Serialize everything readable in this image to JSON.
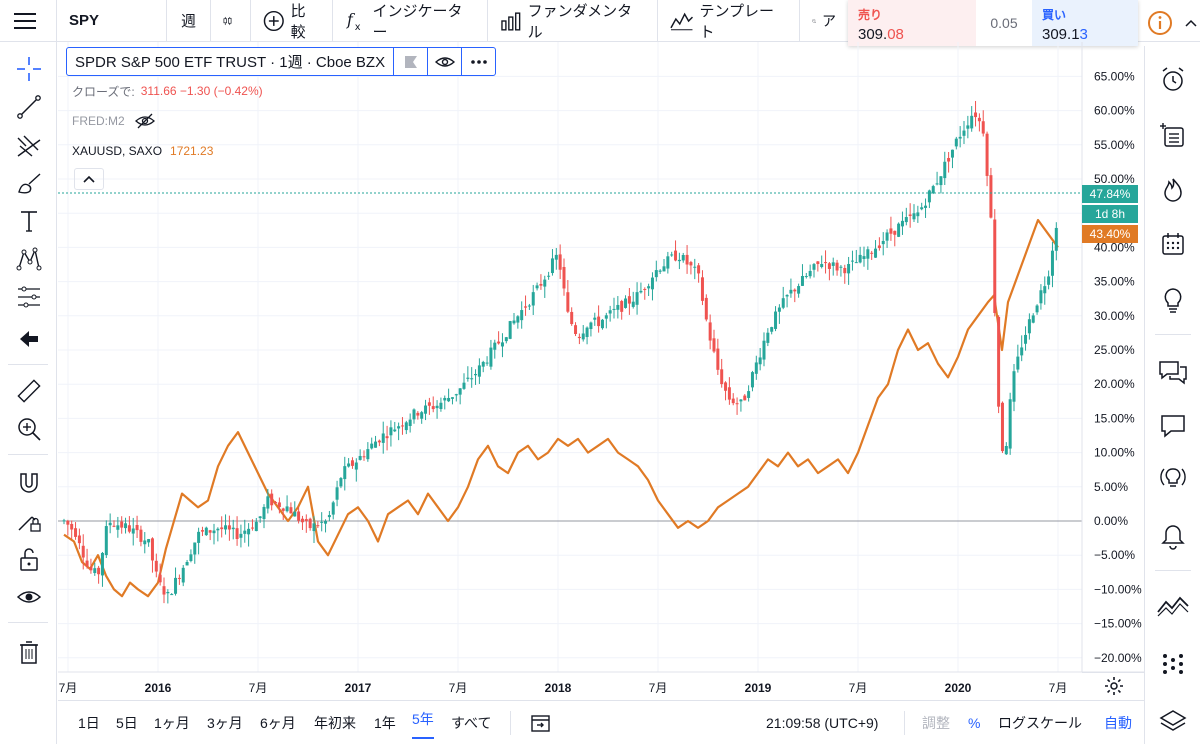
{
  "toolbar": {
    "symbol": "SPY",
    "interval": "週",
    "compare_label": "比較",
    "indicators_label": "インジケーター",
    "fundamentals_label": "ファンダメンタル",
    "templates_label": "テンプレート",
    "alert_partial": "ア"
  },
  "trade": {
    "sell_label": "売り",
    "sell_price_main": "309.",
    "sell_price_frac": "08",
    "spread": "0.05",
    "buy_label": "買い",
    "buy_price_main": "309.1",
    "buy_price_frac": "3",
    "sell_color": "#ef5350",
    "buy_color": "#2962ff"
  },
  "legend": {
    "main_title": "SPDR S&P 500 ETF TRUST · 1週 · Cboe BZX",
    "close_label": "クローズで:",
    "close_values": "311.66  −1.30 (−0.42%)",
    "fred_label": "FRED:M2",
    "xau_label": "XAUUSD, SAXO",
    "xau_value": "1721.23"
  },
  "price_labels": {
    "spy_pct": "47.84%",
    "countdown": "1d 8h",
    "xau_pct": "43.40%",
    "spy_color": "#26a69a",
    "xau_color": "#e07a25"
  },
  "bottom": {
    "ranges": [
      "1日",
      "5日",
      "1ヶ月",
      "3ヶ月",
      "6ヶ月",
      "年初来",
      "1年",
      "5年",
      "すべて"
    ],
    "active_range": "5年",
    "clock": "21:09:58 (UTC+9)",
    "adjust_label": "調整",
    "percent_label": "%",
    "log_label": "ログスケール",
    "auto_label": "自動"
  },
  "chart_data": {
    "type": "line",
    "y_axis_unit": "%",
    "ylim": [
      -21,
      67
    ],
    "y_ticks": [
      "65.00%",
      "60.00%",
      "55.00%",
      "50.00%",
      "45.00%",
      "40.00%",
      "35.00%",
      "30.00%",
      "25.00%",
      "20.00%",
      "15.00%",
      "10.00%",
      "5.00%",
      "0.00%",
      "−5.00%",
      "−10.00%",
      "−15.00%",
      "−20.00%"
    ],
    "x_ticks": [
      "7月",
      "2016",
      "7月",
      "2017",
      "7月",
      "2018",
      "7月",
      "2019",
      "7月",
      "2020",
      "7月"
    ],
    "series": [
      {
        "type": "candlestick",
        "color_up": "#26a69a",
        "color_down": "#ef5350",
        "t": [
          2015.53,
          2015.6,
          2015.65,
          2015.7,
          2015.75,
          2015.85,
          2015.95,
          2016.0,
          2016.05,
          2016.12,
          2016.2,
          2016.3,
          2016.4,
          2016.5,
          2016.55,
          2016.65,
          2016.75,
          2016.85,
          2016.92,
          2017.0,
          2017.1,
          2017.2,
          2017.3,
          2017.4,
          2017.5,
          2017.6,
          2017.7,
          2017.8,
          2017.9,
          2018.0,
          2018.05,
          2018.1,
          2018.15,
          2018.2,
          2018.3,
          2018.4,
          2018.5,
          2018.6,
          2018.7,
          2018.75,
          2018.8,
          2018.85,
          2018.92,
          2018.98,
          2019.05,
          2019.15,
          2019.25,
          2019.32,
          2019.4,
          2019.45,
          2019.55,
          2019.62,
          2019.7,
          2019.8,
          2019.9,
          2020.0,
          2020.08,
          2020.13,
          2020.17,
          2020.2,
          2020.23,
          2020.27,
          2020.32,
          2020.38,
          2020.45,
          2020.5
        ],
        "values": [
          0,
          -2,
          -7,
          -8,
          0,
          -1,
          -3,
          -9,
          -11,
          -7,
          -2,
          -1,
          -2,
          0,
          3,
          2,
          -1,
          0,
          7,
          9,
          12,
          14,
          16,
          17,
          19,
          22,
          26,
          30,
          34,
          39,
          30,
          27,
          29,
          29,
          31,
          33,
          37,
          39,
          36,
          28,
          22,
          18,
          17,
          22,
          28,
          33,
          36,
          38,
          37,
          37,
          39,
          41,
          43,
          45,
          50,
          56,
          60,
          57,
          42,
          18,
          8,
          20,
          26,
          31,
          36,
          45
        ]
      },
      {
        "name": "XAUUSD, SAXO",
        "color": "#e07a25",
        "t": [
          2015.53,
          2015.58,
          2015.62,
          2015.66,
          2015.7,
          2015.74,
          2015.78,
          2015.82,
          2015.86,
          2015.9,
          2015.95,
          2016.0,
          2016.04,
          2016.08,
          2016.12,
          2016.16,
          2016.2,
          2016.25,
          2016.3,
          2016.35,
          2016.4,
          2016.45,
          2016.5,
          2016.55,
          2016.6,
          2016.65,
          2016.7,
          2016.75,
          2016.8,
          2016.85,
          2016.9,
          2016.95,
          2017.0,
          2017.05,
          2017.1,
          2017.15,
          2017.2,
          2017.25,
          2017.3,
          2017.35,
          2017.4,
          2017.45,
          2017.5,
          2017.55,
          2017.6,
          2017.65,
          2017.7,
          2017.75,
          2017.8,
          2017.85,
          2017.9,
          2017.95,
          2018.0,
          2018.05,
          2018.1,
          2018.15,
          2018.2,
          2018.25,
          2018.3,
          2018.35,
          2018.4,
          2018.45,
          2018.5,
          2018.55,
          2018.6,
          2018.65,
          2018.7,
          2018.75,
          2018.8,
          2018.85,
          2018.9,
          2018.95,
          2019.0,
          2019.05,
          2019.1,
          2019.15,
          2019.2,
          2019.25,
          2019.3,
          2019.35,
          2019.4,
          2019.45,
          2019.5,
          2019.55,
          2019.6,
          2019.65,
          2019.7,
          2019.75,
          2019.8,
          2019.85,
          2019.9,
          2019.95,
          2020.0,
          2020.05,
          2020.1,
          2020.15,
          2020.18,
          2020.2,
          2020.22,
          2020.25,
          2020.3,
          2020.35,
          2020.4,
          2020.45,
          2020.5
        ],
        "values": [
          -2,
          -3,
          -6,
          -7,
          -5,
          -8,
          -10,
          -11,
          -9,
          -10,
          -11,
          -9,
          -4,
          0,
          4,
          3,
          2,
          3,
          8,
          11,
          13,
          10,
          7,
          4,
          2,
          0,
          2,
          5,
          -3,
          -5,
          -2,
          1,
          2,
          0,
          -3,
          1,
          2,
          3,
          1,
          4,
          2,
          0,
          2,
          5,
          9,
          11,
          8,
          7,
          10,
          11,
          9,
          10,
          12,
          11,
          12,
          10,
          11,
          12,
          10,
          9,
          8,
          6,
          3,
          1,
          -1,
          0,
          -1,
          0,
          2,
          3,
          4,
          5,
          7,
          9,
          8,
          10,
          8,
          9,
          7,
          8,
          9,
          7,
          10,
          14,
          18,
          20,
          25,
          28,
          25,
          26,
          23,
          21,
          24,
          28,
          30,
          32,
          33,
          29,
          25,
          32,
          36,
          40,
          44,
          42,
          40
        ]
      }
    ]
  },
  "icons": {
    "menu": "hamburger-icon",
    "compare": "plus-circle-icon",
    "indicators": "fx-icon",
    "fundamentals": "bar-chart-icon",
    "templates": "template-icon",
    "alert": "alarm-plus-icon",
    "info": "info-icon"
  }
}
